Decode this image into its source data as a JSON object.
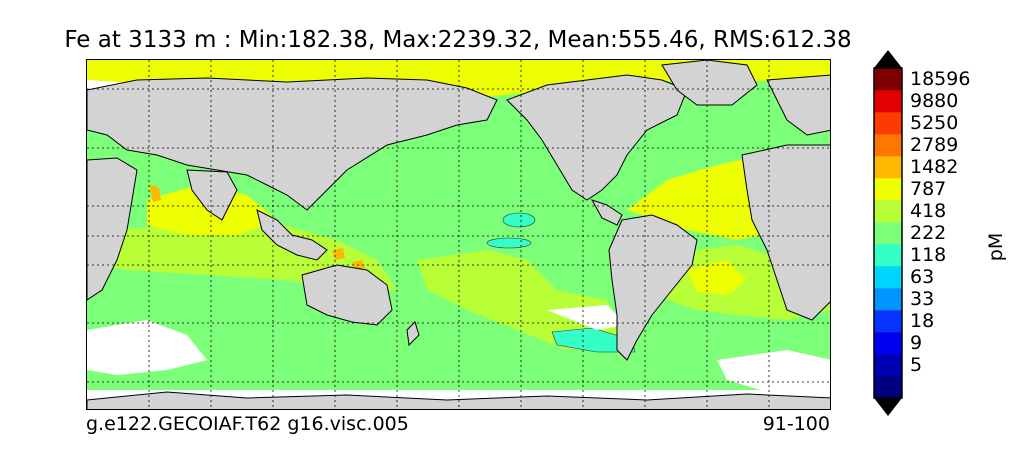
{
  "title": "Fe at 3133 m : Min:182.38, Max:2239.32, Mean:555.46, RMS:612.38",
  "caption_left": "g.e122.GECOIAF.T62 g16.visc.005",
  "caption_right": "91-100",
  "colorbar": {
    "unit": "pM",
    "under_color": "#000000",
    "over_color": "#000000",
    "bins": [
      {
        "label": "",
        "color": "#00007f"
      },
      {
        "label": "5",
        "color": "#0000b2"
      },
      {
        "label": "9",
        "color": "#0000f0"
      },
      {
        "label": "18",
        "color": "#0a32ff"
      },
      {
        "label": "33",
        "color": "#0094ff"
      },
      {
        "label": "63",
        "color": "#00d4ff"
      },
      {
        "label": "118",
        "color": "#33ffc7"
      },
      {
        "label": "222",
        "color": "#7cff79"
      },
      {
        "label": "418",
        "color": "#b8ff38"
      },
      {
        "label": "787",
        "color": "#eeff04"
      },
      {
        "label": "1482",
        "color": "#ffb800"
      },
      {
        "label": "2789",
        "color": "#ff7600"
      },
      {
        "label": "5250",
        "color": "#ff3a00"
      },
      {
        "label": "9880",
        "color": "#e40000"
      },
      {
        "label": "18596",
        "color": "#7f0000"
      }
    ]
  },
  "map": {
    "land_color": "#d3d3d3",
    "missing_color": "#ffffff",
    "grid_style": "dotted"
  }
}
